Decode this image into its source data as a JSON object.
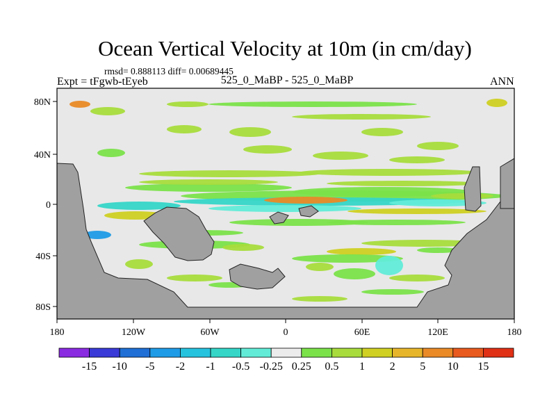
{
  "title": "Ocean Vertical Velocity at 10m (in cm/day)",
  "stats": "rmsd= 0.888113 diff= 0.00689445",
  "experiment": "Expt = tFgwb-tEyeb",
  "subtitle": "525_0_MaBP - 525_0_MaBP",
  "season": "ANN",
  "chart_data": {
    "type": "heatmap",
    "title": "Ocean Vertical Velocity at 10m (in cm/day)",
    "x_ticks": [
      "180",
      "120W",
      "60W",
      "0",
      "60E",
      "120E",
      "180"
    ],
    "y_ticks": [
      "80N",
      "40N",
      "0",
      "40S",
      "80S"
    ],
    "x_range": [
      -180,
      180
    ],
    "y_range": [
      -90,
      90
    ],
    "colorbar": {
      "labels": [
        "-15",
        "-10",
        "-5",
        "-2",
        "-1",
        "-0.5",
        "-0.25",
        "0.25",
        "0.5",
        "1",
        "2",
        "5",
        "10",
        "15"
      ],
      "colors": [
        "#8a2be2",
        "#3a3ad8",
        "#1f6fd6",
        "#1e9be6",
        "#26c3df",
        "#35d6c8",
        "#62ecd8",
        "#ececec",
        "#7be24a",
        "#a8dc3c",
        "#cfd022",
        "#e6b52a",
        "#e98a26",
        "#e85a1e",
        "#e03016"
      ]
    },
    "land_color": "#a0a0a0",
    "ocean_neutral_color": "#e8e8e8"
  }
}
